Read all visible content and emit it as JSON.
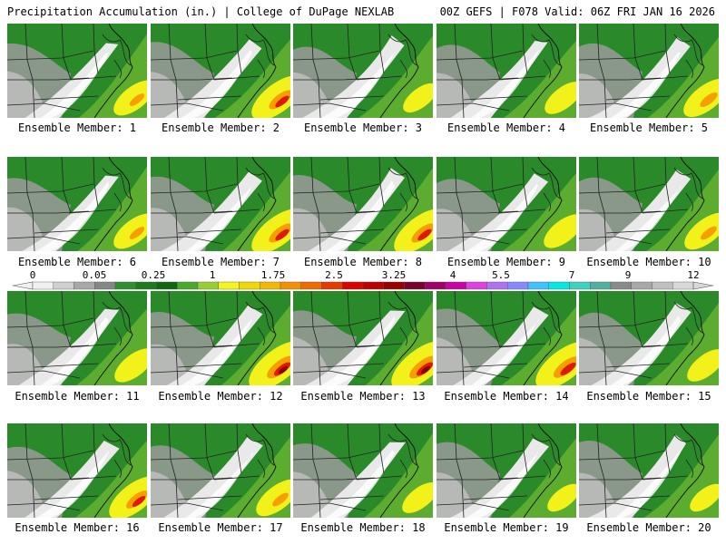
{
  "header": {
    "title": "Precipitation Accumulation (in.) | College of DuPage NEXLAB",
    "valid": "00Z GEFS | F078 Valid: 06Z FRI JAN 16 2026"
  },
  "member_label_prefix": "Ensemble Member:",
  "members": [
    {
      "number": "1",
      "intensity": 0.55
    },
    {
      "number": "2",
      "intensity": 0.85
    },
    {
      "number": "3",
      "intensity": 0.35
    },
    {
      "number": "4",
      "intensity": 0.45
    },
    {
      "number": "5",
      "intensity": 0.65
    },
    {
      "number": "6",
      "intensity": 0.55
    },
    {
      "number": "7",
      "intensity": 0.85
    },
    {
      "number": "8",
      "intensity": 0.85
    },
    {
      "number": "9",
      "intensity": 0.5
    },
    {
      "number": "10",
      "intensity": 0.6
    },
    {
      "number": "11",
      "intensity": 0.5
    },
    {
      "number": "12",
      "intensity": 1.0
    },
    {
      "number": "13",
      "intensity": 1.0
    },
    {
      "number": "14",
      "intensity": 0.95
    },
    {
      "number": "15",
      "intensity": 0.45
    },
    {
      "number": "16",
      "intensity": 0.8
    },
    {
      "number": "17",
      "intensity": 0.6
    },
    {
      "number": "18",
      "intensity": 0.4
    },
    {
      "number": "19",
      "intensity": 0.3
    },
    {
      "number": "20",
      "intensity": 0.3
    }
  ],
  "colorbar": {
    "tick_labels": [
      "0",
      "0.05",
      "0.25",
      "1",
      "1.75",
      "2.5",
      "3.25",
      "4",
      "5.5",
      "7",
      "9",
      "12"
    ],
    "colors": [
      "#f0f0f0",
      "#cfcfcf",
      "#a8a8a8",
      "#868686",
      "#2e8f2e",
      "#1f7a1f",
      "#126612",
      "#4aa82a",
      "#9acd32",
      "#f5f51a",
      "#f0d800",
      "#f5b800",
      "#f59000",
      "#ef6a00",
      "#e83a00",
      "#e00000",
      "#c00000",
      "#9a0000",
      "#7a0030",
      "#a0006a",
      "#cc00a8",
      "#e040e0",
      "#b070f0",
      "#8888ff",
      "#40c0ff",
      "#00e8e8",
      "#40d0c0",
      "#50b0a0",
      "#8a8a8a",
      "#a8a8a8",
      "#c0c0c0",
      "#d8d8d8"
    ]
  }
}
